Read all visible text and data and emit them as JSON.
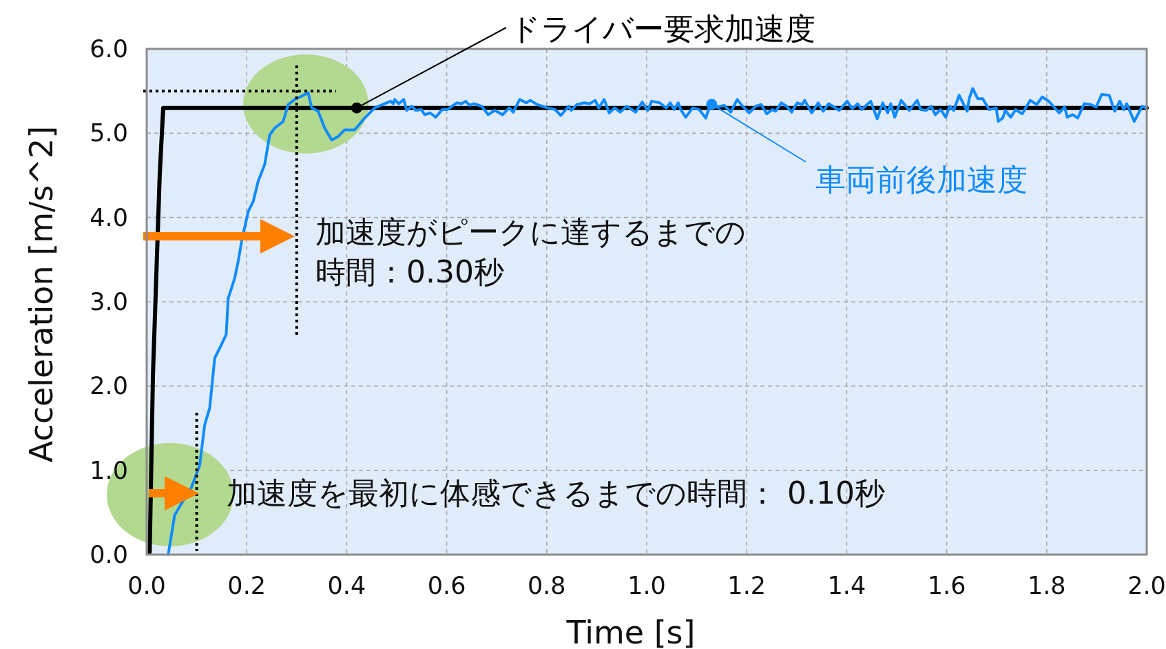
{
  "chart_data": {
    "type": "line",
    "xlabel": "Time [s]",
    "ylabel": "Acceleration [m/s^2]",
    "xlim": [
      0,
      2
    ],
    "ylim": [
      0,
      6
    ],
    "xticks": [
      {
        "value": 0,
        "label": "0.0"
      },
      {
        "value": 0.2,
        "label": "0.2"
      },
      {
        "value": 0.4,
        "label": "0.4"
      },
      {
        "value": 0.6,
        "label": "0.6"
      },
      {
        "value": 0.8,
        "label": "0.8"
      },
      {
        "value": 1.0,
        "label": "1.0"
      },
      {
        "value": 1.2,
        "label": "1.2"
      },
      {
        "value": 1.4,
        "label": "1.4"
      },
      {
        "value": 1.6,
        "label": "1.6"
      },
      {
        "value": 1.8,
        "label": "1.8"
      },
      {
        "value": 2.0,
        "label": "2.0"
      }
    ],
    "yticks": [
      {
        "value": 0,
        "label": "0.0"
      },
      {
        "value": 1,
        "label": "1.0"
      },
      {
        "value": 2,
        "label": "2.0"
      },
      {
        "value": 3,
        "label": "3.0"
      },
      {
        "value": 4,
        "label": "4.0"
      },
      {
        "value": 5,
        "label": "5.0"
      },
      {
        "value": 6,
        "label": "6.0"
      }
    ],
    "grid": true,
    "line_style": "solid",
    "series": [
      {
        "name": "ドライバー要求加速度",
        "color": "#000000",
        "x": [
          0.006,
          0.0125,
          0.026,
          0.033,
          2.0
        ],
        "values": [
          0.03,
          2.13,
          4.5,
          5.3,
          5.3
        ]
      },
      {
        "name": "車両前後加速度",
        "color": "#0f8bff",
        "x": [
          0.043,
          0.056,
          0.068,
          0.089,
          0.106,
          0.116,
          0.126,
          0.136,
          0.146,
          0.159,
          0.163,
          0.176,
          0.183,
          0.19,
          0.203,
          0.213,
          0.223,
          0.236,
          0.246,
          0.256,
          0.273,
          0.283,
          0.296,
          0.31,
          0.323,
          0.33,
          0.343,
          0.356,
          0.37,
          0.383,
          0.396,
          0.416,
          0.436,
          0.456,
          0.488,
          0.493,
          0.496,
          0.504,
          0.514,
          0.52,
          0.53,
          0.538,
          0.549,
          0.556,
          0.567,
          0.578,
          0.591,
          0.601,
          0.62,
          0.63,
          0.638,
          0.646,
          0.654,
          0.67,
          0.683,
          0.696,
          0.712,
          0.725,
          0.733,
          0.746,
          0.759,
          0.767,
          0.781,
          0.802,
          0.817,
          0.828,
          0.844,
          0.849,
          0.86,
          0.875,
          0.886,
          0.897,
          0.904,
          0.915,
          0.925,
          0.936,
          0.947,
          0.96,
          0.978,
          0.991,
          1.002,
          1.01,
          1.026,
          1.039,
          1.047,
          1.055,
          1.063,
          1.068,
          1.078,
          1.092,
          1.105,
          1.118,
          1.128,
          1.139,
          1.155,
          1.168,
          1.181,
          1.192,
          1.205,
          1.218,
          1.229,
          1.24,
          1.251,
          1.258,
          1.269,
          1.28,
          1.29,
          1.301,
          1.311,
          1.316,
          1.33,
          1.343,
          1.353,
          1.364,
          1.385,
          1.401,
          1.411,
          1.422,
          1.43,
          1.448,
          1.461,
          1.472,
          1.482,
          1.488,
          1.496,
          1.509,
          1.525,
          1.541,
          1.548,
          1.559,
          1.569,
          1.577,
          1.588,
          1.598,
          1.606,
          1.614,
          1.625,
          1.641,
          1.645,
          1.652,
          1.662,
          1.672,
          1.685,
          1.699,
          1.703,
          1.712,
          1.717,
          1.728,
          1.738,
          1.751,
          1.767,
          1.78,
          1.791,
          1.804,
          1.825,
          1.836,
          1.841,
          1.852,
          1.862,
          1.875,
          1.888,
          1.899,
          1.91,
          1.925,
          1.936,
          1.946,
          1.954,
          1.96,
          1.975,
          1.991,
          1.998
        ],
        "values": [
          0.0,
          0.47,
          0.59,
          0.79,
          1.06,
          1.54,
          1.74,
          2.33,
          2.45,
          2.61,
          3.04,
          3.28,
          3.48,
          3.72,
          4.07,
          4.19,
          4.43,
          4.63,
          4.98,
          5.06,
          5.14,
          5.34,
          5.4,
          5.44,
          5.48,
          5.3,
          5.26,
          5.06,
          4.92,
          4.96,
          5.04,
          5.04,
          5.18,
          5.3,
          5.38,
          5.35,
          5.4,
          5.35,
          5.4,
          5.27,
          5.32,
          5.27,
          5.28,
          5.22,
          5.24,
          5.19,
          5.28,
          5.28,
          5.36,
          5.35,
          5.38,
          5.33,
          5.35,
          5.32,
          5.22,
          5.27,
          5.22,
          5.3,
          5.25,
          5.4,
          5.36,
          5.39,
          5.34,
          5.3,
          5.28,
          5.21,
          5.32,
          5.27,
          5.34,
          5.36,
          5.35,
          5.39,
          5.3,
          5.4,
          5.24,
          5.3,
          5.25,
          5.32,
          5.25,
          5.37,
          5.27,
          5.38,
          5.36,
          5.3,
          5.36,
          5.28,
          5.36,
          5.28,
          5.19,
          5.3,
          5.28,
          5.18,
          5.35,
          5.31,
          5.33,
          5.25,
          5.4,
          5.32,
          5.24,
          5.32,
          5.34,
          5.23,
          5.28,
          5.26,
          5.36,
          5.32,
          5.25,
          5.36,
          5.34,
          5.39,
          5.24,
          5.36,
          5.26,
          5.35,
          5.27,
          5.38,
          5.29,
          5.35,
          5.28,
          5.38,
          5.17,
          5.36,
          5.24,
          5.35,
          5.19,
          5.39,
          5.27,
          5.39,
          5.28,
          5.27,
          5.32,
          5.22,
          5.28,
          5.19,
          5.32,
          5.27,
          5.45,
          5.26,
          5.41,
          5.53,
          5.41,
          5.41,
          5.28,
          5.3,
          5.14,
          5.18,
          5.27,
          5.19,
          5.28,
          5.23,
          5.39,
          5.34,
          5.43,
          5.38,
          5.24,
          5.31,
          5.19,
          5.22,
          5.18,
          5.35,
          5.34,
          5.31,
          5.46,
          5.45,
          5.26,
          5.38,
          5.28,
          5.35,
          5.14,
          5.32,
          5.3
        ]
      }
    ],
    "annotations": [
      "加速度がピークに達するまでの時間：0.30秒",
      "加速度を最初に体感できるまでの時間： 0.10秒"
    ],
    "ref_lines": [
      {
        "axis": "x",
        "value": 0.3,
        "color": "#000000",
        "line_style": "dotted"
      },
      {
        "axis": "x",
        "value": 0.1,
        "color": "#000000",
        "line_style": "dotted"
      },
      {
        "axis": "y",
        "value": 5.5,
        "color": "#000000",
        "line_style": "dotted"
      }
    ]
  }
}
